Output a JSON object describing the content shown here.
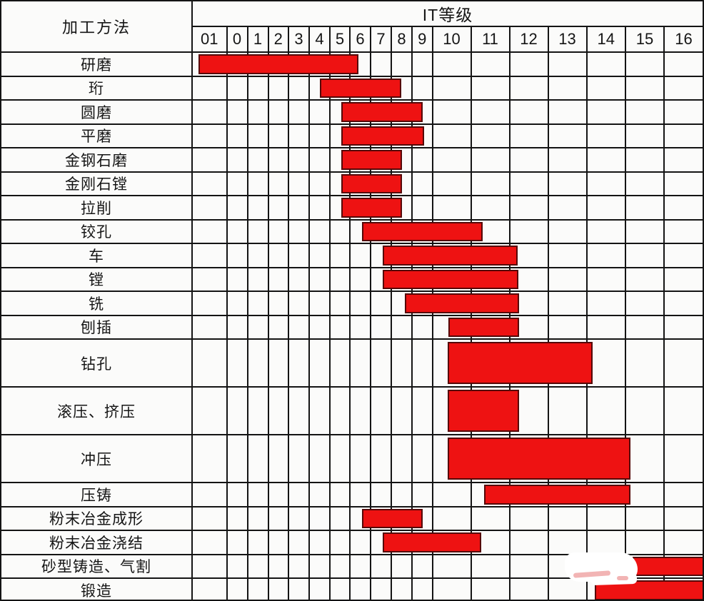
{
  "header": {
    "method_column": "加工方法",
    "grade_group": "IT等级"
  },
  "colors": {
    "bar_fill": "#ee1212",
    "bar_outline": "#550808",
    "grid_line": "#141414",
    "background": "#fbfbfa",
    "text": "#151515"
  },
  "artifact": "white erased-watermark patch over bottom-right cells",
  "chart_data": {
    "type": "bar",
    "subtype": "horizontal-range-bars (gantt-style table)",
    "title": "IT等级",
    "row_header": "加工方法",
    "columns": [
      "01",
      "0",
      "1",
      "2",
      "3",
      "4",
      "5",
      "6",
      "7",
      "8",
      "9",
      "10",
      "11",
      "12",
      "13",
      "14",
      "15",
      "16"
    ],
    "legend_position": "none",
    "grid": true,
    "rows": [
      {
        "method": "研磨",
        "it_from": "01",
        "it_to": "5",
        "start_pct": 1.1,
        "end_pct": 32.5,
        "tall": false
      },
      {
        "method": "珩",
        "it_from": "4",
        "it_to": "7",
        "start_pct": 24.9,
        "end_pct": 40.9,
        "tall": false
      },
      {
        "method": "圆磨",
        "it_from": "5",
        "it_to": "8",
        "start_pct": 29.1,
        "end_pct": 45.1,
        "tall": false
      },
      {
        "method": "平磨",
        "it_from": "5",
        "it_to": "8",
        "start_pct": 29.1,
        "end_pct": 45.4,
        "tall": false
      },
      {
        "method": "金钢石磨",
        "it_from": "5",
        "it_to": "7",
        "start_pct": 29.1,
        "end_pct": 41.1,
        "tall": false
      },
      {
        "method": "金刚石镗",
        "it_from": "5",
        "it_to": "7",
        "start_pct": 29.1,
        "end_pct": 41.1,
        "tall": false
      },
      {
        "method": "拉削",
        "it_from": "5",
        "it_to": "7",
        "start_pct": 29.1,
        "end_pct": 41.1,
        "tall": false
      },
      {
        "method": "铰孔",
        "it_from": "6",
        "it_to": "10",
        "start_pct": 33.2,
        "end_pct": 56.8,
        "tall": false
      },
      {
        "method": "车",
        "it_from": "7",
        "it_to": "11",
        "start_pct": 37.3,
        "end_pct": 63.7,
        "tall": false
      },
      {
        "method": "镗",
        "it_from": "7",
        "it_to": "11",
        "start_pct": 37.3,
        "end_pct": 63.8,
        "tall": false
      },
      {
        "method": "铣",
        "it_from": "8",
        "it_to": "11",
        "start_pct": 41.6,
        "end_pct": 64.0,
        "tall": false
      },
      {
        "method": "刨插",
        "it_from": "10",
        "it_to": "11",
        "start_pct": 50.1,
        "end_pct": 64.0,
        "tall": false
      },
      {
        "method": "钻孔",
        "it_from": "10",
        "it_to": "13",
        "start_pct": 50.0,
        "end_pct": 78.5,
        "tall": true
      },
      {
        "method": "滚压、挤压",
        "it_from": "10",
        "it_to": "11",
        "start_pct": 50.0,
        "end_pct": 64.0,
        "tall": true
      },
      {
        "method": "冲压",
        "it_from": "10",
        "it_to": "14",
        "start_pct": 50.0,
        "end_pct": 85.9,
        "tall": true
      },
      {
        "method": "压铸",
        "it_from": "11",
        "it_to": "14",
        "start_pct": 57.1,
        "end_pct": 85.9,
        "tall": false
      },
      {
        "method": "粉末冶金成形",
        "it_from": "6",
        "it_to": "8",
        "start_pct": 33.2,
        "end_pct": 45.1,
        "tall": false
      },
      {
        "method": "粉末冶金浇结",
        "it_from": "7",
        "it_to": "10",
        "start_pct": 37.3,
        "end_pct": 56.6,
        "tall": false
      },
      {
        "method": "砂型铸造、气割",
        "it_from": "15",
        "it_to": "16",
        "start_pct": 86.3,
        "end_pct": 100,
        "tall": false,
        "bleed_right": true
      },
      {
        "method": "锻造",
        "it_from": "14",
        "it_to": "16",
        "start_pct": 78.9,
        "end_pct": 100,
        "tall": false,
        "bleed_right": true
      }
    ]
  }
}
